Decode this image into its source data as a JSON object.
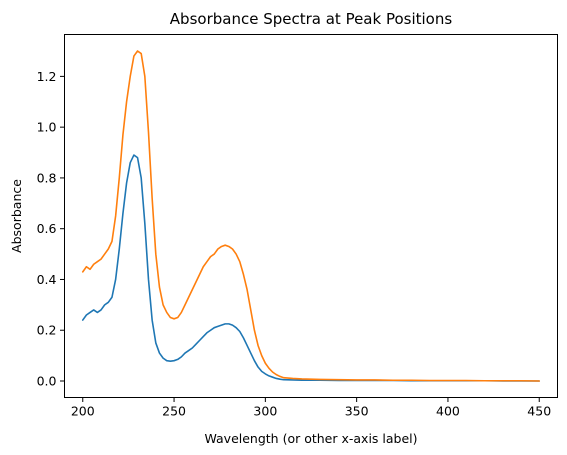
{
  "chart_data": {
    "type": "line",
    "title": "Absorbance Spectra at Peak Positions",
    "xlabel": "Wavelength (or other x-axis label)",
    "ylabel": "Absorbance",
    "xlim": [
      190,
      460
    ],
    "ylim": [
      -0.065,
      1.365
    ],
    "xticks": [
      200,
      250,
      300,
      350,
      400,
      450
    ],
    "xtick_labels": [
      "200",
      "250",
      "300",
      "350",
      "400",
      "450"
    ],
    "yticks": [
      0.0,
      0.2,
      0.4,
      0.6,
      0.8,
      1.0,
      1.2
    ],
    "ytick_labels": [
      "0.0",
      "0.2",
      "0.4",
      "0.6",
      "0.8",
      "1.0",
      "1.2"
    ],
    "grid": false,
    "legend": "none",
    "series": [
      {
        "color": "#1f77b4",
        "x": [
          200,
          202,
          204,
          206,
          208,
          210,
          212,
          214,
          216,
          218,
          220,
          222,
          224,
          226,
          228,
          230,
          232,
          234,
          236,
          238,
          240,
          242,
          244,
          246,
          248,
          250,
          252,
          254,
          256,
          258,
          260,
          262,
          264,
          266,
          268,
          270,
          272,
          274,
          276,
          278,
          280,
          282,
          284,
          286,
          288,
          290,
          292,
          294,
          296,
          298,
          300,
          302,
          304,
          306,
          308,
          310,
          315,
          320,
          330,
          340,
          350,
          360,
          370,
          380,
          390,
          400,
          410,
          420,
          430,
          440,
          450
        ],
        "y": [
          0.24,
          0.26,
          0.27,
          0.28,
          0.27,
          0.28,
          0.3,
          0.31,
          0.33,
          0.4,
          0.52,
          0.66,
          0.78,
          0.86,
          0.89,
          0.88,
          0.8,
          0.62,
          0.4,
          0.24,
          0.15,
          0.11,
          0.09,
          0.08,
          0.078,
          0.08,
          0.085,
          0.095,
          0.11,
          0.12,
          0.13,
          0.145,
          0.16,
          0.175,
          0.19,
          0.2,
          0.21,
          0.215,
          0.22,
          0.225,
          0.225,
          0.22,
          0.21,
          0.195,
          0.17,
          0.14,
          0.11,
          0.08,
          0.055,
          0.038,
          0.028,
          0.02,
          0.015,
          0.01,
          0.007,
          0.005,
          0.004,
          0.003,
          0.003,
          0.002,
          0.002,
          0.002,
          0.002,
          0.001,
          0.001,
          0.001,
          0.001,
          0.001,
          0.0,
          0.0,
          0.0
        ]
      },
      {
        "color": "#ff7f0e",
        "x": [
          200,
          202,
          204,
          206,
          208,
          210,
          212,
          214,
          216,
          218,
          220,
          222,
          224,
          226,
          228,
          230,
          232,
          234,
          236,
          238,
          240,
          242,
          244,
          246,
          248,
          250,
          252,
          254,
          256,
          258,
          260,
          262,
          264,
          266,
          268,
          270,
          272,
          274,
          276,
          278,
          280,
          282,
          284,
          286,
          288,
          290,
          292,
          294,
          296,
          298,
          300,
          302,
          304,
          306,
          308,
          310,
          315,
          320,
          330,
          340,
          350,
          360,
          370,
          380,
          390,
          400,
          410,
          420,
          430,
          440,
          450
        ],
        "y": [
          0.43,
          0.45,
          0.44,
          0.46,
          0.47,
          0.48,
          0.5,
          0.52,
          0.55,
          0.65,
          0.8,
          0.97,
          1.1,
          1.2,
          1.28,
          1.3,
          1.29,
          1.2,
          0.98,
          0.72,
          0.5,
          0.37,
          0.3,
          0.27,
          0.25,
          0.245,
          0.25,
          0.27,
          0.3,
          0.33,
          0.36,
          0.39,
          0.42,
          0.45,
          0.47,
          0.49,
          0.5,
          0.52,
          0.53,
          0.535,
          0.53,
          0.52,
          0.5,
          0.47,
          0.42,
          0.36,
          0.28,
          0.2,
          0.14,
          0.1,
          0.07,
          0.05,
          0.035,
          0.025,
          0.018,
          0.013,
          0.01,
          0.008,
          0.006,
          0.005,
          0.004,
          0.004,
          0.003,
          0.003,
          0.002,
          0.002,
          0.002,
          0.001,
          0.001,
          0.001,
          0.0
        ]
      }
    ]
  }
}
